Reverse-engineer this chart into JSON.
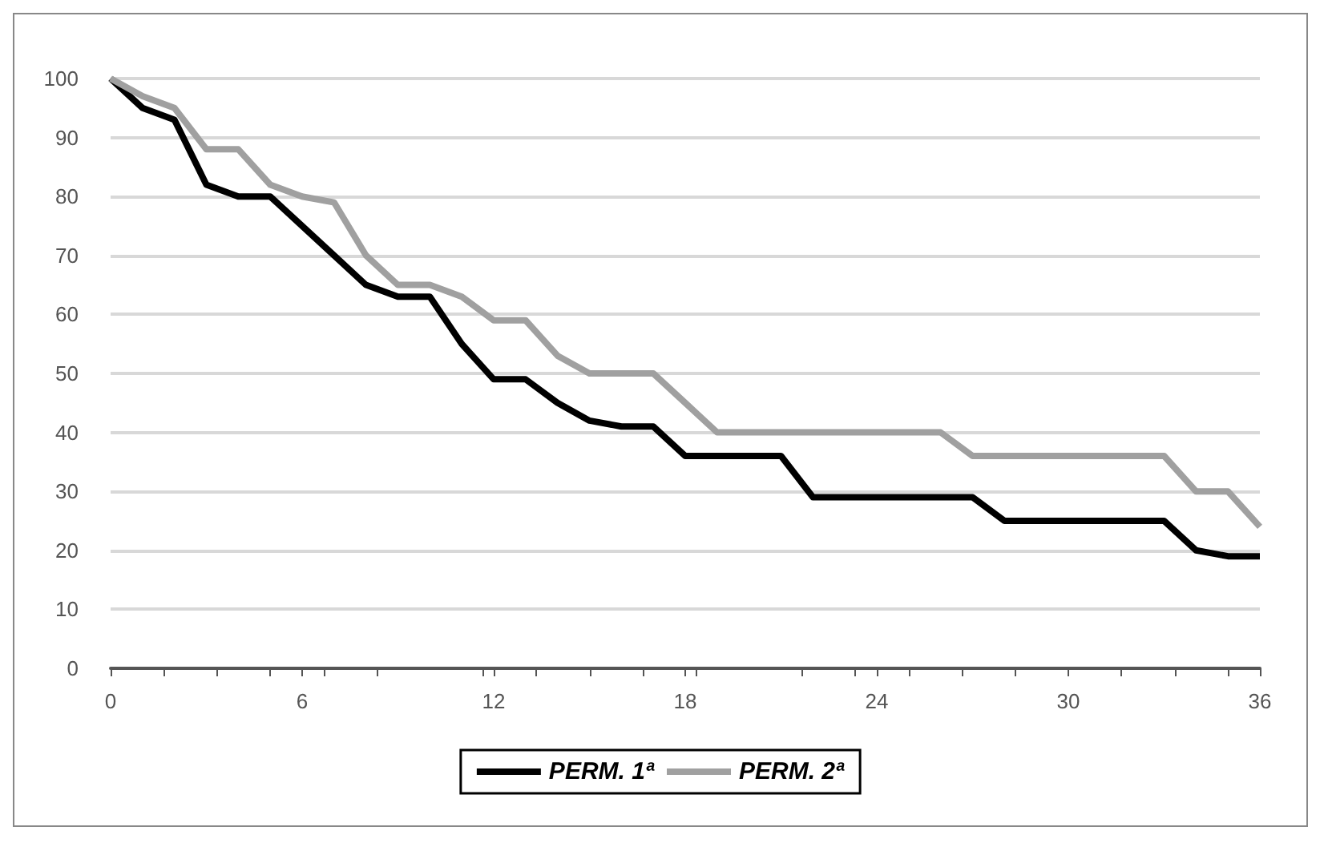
{
  "chart_data": {
    "type": "line",
    "x": [
      0,
      1,
      2,
      3,
      4,
      5,
      6,
      7,
      8,
      9,
      10,
      11,
      12,
      13,
      14,
      15,
      16,
      17,
      18,
      19,
      20,
      21,
      22,
      23,
      24,
      25,
      26,
      27,
      28,
      29,
      30,
      31,
      32,
      33,
      34,
      35,
      36
    ],
    "series": [
      {
        "name": "PERM. 1ª",
        "color": "#000000",
        "values": [
          100,
          95,
          93,
          82,
          80,
          80,
          75,
          70,
          65,
          63,
          63,
          55,
          49,
          49,
          45,
          42,
          41,
          41,
          36,
          36,
          36,
          36,
          29,
          29,
          29,
          29,
          29,
          29,
          25,
          25,
          25,
          25,
          25,
          25,
          20,
          19,
          19
        ]
      },
      {
        "name": "PERM. 2ª",
        "color": "#a0a0a0",
        "values": [
          100,
          97,
          95,
          88,
          88,
          82,
          80,
          79,
          70,
          65,
          65,
          63,
          59,
          59,
          53,
          50,
          50,
          50,
          45,
          40,
          40,
          40,
          40,
          40,
          40,
          40,
          40,
          36,
          36,
          36,
          36,
          36,
          36,
          36,
          30,
          30,
          24
        ]
      }
    ],
    "xlim": [
      0,
      36
    ],
    "xticks": [
      0,
      6,
      12,
      18,
      24,
      30,
      36
    ],
    "ylim": [
      0,
      100
    ],
    "yticks": [
      0,
      10,
      20,
      30,
      40,
      50,
      60,
      70,
      80,
      90,
      100
    ],
    "grid": "y",
    "legend": "bottom",
    "marker": "none",
    "line_style": "solid"
  }
}
